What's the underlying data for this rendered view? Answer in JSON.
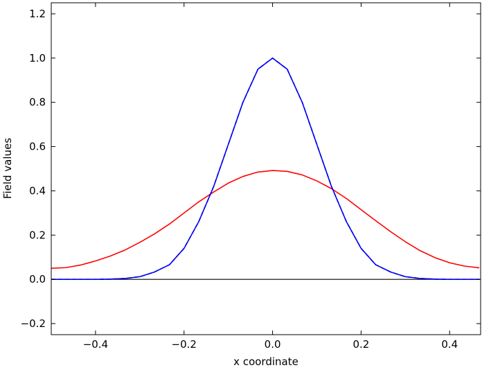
{
  "chart_data": {
    "type": "line",
    "title": "",
    "xlabel": "x coordinate",
    "ylabel": "Field values",
    "xlim": [
      -0.5,
      0.47
    ],
    "ylim": [
      -0.25,
      1.25
    ],
    "grid": false,
    "legend": "none",
    "xticks": [
      {
        "value": -0.4,
        "label": "−0.4"
      },
      {
        "value": -0.2,
        "label": "−0.2"
      },
      {
        "value": 0.0,
        "label": "0.0"
      },
      {
        "value": 0.2,
        "label": "0.2"
      },
      {
        "value": 0.4,
        "label": "0.4"
      }
    ],
    "yticks": [
      {
        "value": -0.2,
        "label": "−0.2"
      },
      {
        "value": 0.0,
        "label": "0.0"
      },
      {
        "value": 0.2,
        "label": "0.2"
      },
      {
        "value": 0.4,
        "label": "0.4"
      },
      {
        "value": 0.6,
        "label": "0.6"
      },
      {
        "value": 0.8,
        "label": "0.8"
      },
      {
        "value": 1.0,
        "label": "1.0"
      },
      {
        "value": 1.2,
        "label": "1.2"
      }
    ],
    "series": [
      {
        "color": "#ff0000",
        "dash": "solid",
        "x": [
          -0.5,
          -0.467,
          -0.433,
          -0.4,
          -0.367,
          -0.333,
          -0.3,
          -0.267,
          -0.233,
          -0.2,
          -0.167,
          -0.133,
          -0.1,
          -0.067,
          -0.033,
          0.0,
          0.033,
          0.067,
          0.1,
          0.133,
          0.167,
          0.2,
          0.233,
          0.267,
          0.3,
          0.333,
          0.367,
          0.4,
          0.433,
          0.467
        ],
        "y": [
          0.05,
          0.053,
          0.065,
          0.083,
          0.105,
          0.133,
          0.167,
          0.205,
          0.25,
          0.3,
          0.35,
          0.395,
          0.435,
          0.465,
          0.485,
          0.492,
          0.488,
          0.472,
          0.445,
          0.41,
          0.365,
          0.315,
          0.265,
          0.215,
          0.17,
          0.13,
          0.098,
          0.075,
          0.06,
          0.052
        ]
      },
      {
        "color": "#000000",
        "dash": "dashed",
        "x": [
          -0.5,
          -0.467,
          -0.433,
          -0.4,
          -0.367,
          -0.333,
          -0.3,
          -0.267,
          -0.233,
          -0.2,
          -0.167,
          -0.133,
          -0.1,
          -0.067,
          -0.033,
          0.0,
          0.033,
          0.067,
          0.1,
          0.133,
          0.167,
          0.2,
          0.233,
          0.267,
          0.3,
          0.333,
          0.367,
          0.4,
          0.433,
          0.467
        ],
        "y": [
          0.0,
          0.0,
          0.0,
          0.0,
          0.001,
          0.004,
          0.012,
          0.033,
          0.066,
          0.14,
          0.26,
          0.42,
          0.61,
          0.8,
          0.95,
          1.0,
          0.95,
          0.8,
          0.61,
          0.42,
          0.26,
          0.14,
          0.066,
          0.033,
          0.012,
          0.004,
          0.001,
          0.0,
          0.0,
          0.0
        ]
      },
      {
        "color": "#0000ff",
        "dash": "solid",
        "x": [
          -0.5,
          -0.467,
          -0.433,
          -0.4,
          -0.367,
          -0.333,
          -0.3,
          -0.267,
          -0.233,
          -0.2,
          -0.167,
          -0.133,
          -0.1,
          -0.067,
          -0.033,
          0.0,
          0.033,
          0.067,
          0.1,
          0.133,
          0.167,
          0.2,
          0.233,
          0.267,
          0.3,
          0.333,
          0.367,
          0.4,
          0.433,
          0.467
        ],
        "y": [
          0.0,
          0.0,
          0.0,
          0.0,
          0.001,
          0.004,
          0.012,
          0.033,
          0.066,
          0.14,
          0.26,
          0.42,
          0.61,
          0.8,
          0.95,
          1.0,
          0.95,
          0.8,
          0.61,
          0.42,
          0.26,
          0.14,
          0.066,
          0.033,
          0.012,
          0.004,
          0.001,
          0.0,
          0.0,
          0.0
        ]
      }
    ],
    "zero_line": true
  }
}
